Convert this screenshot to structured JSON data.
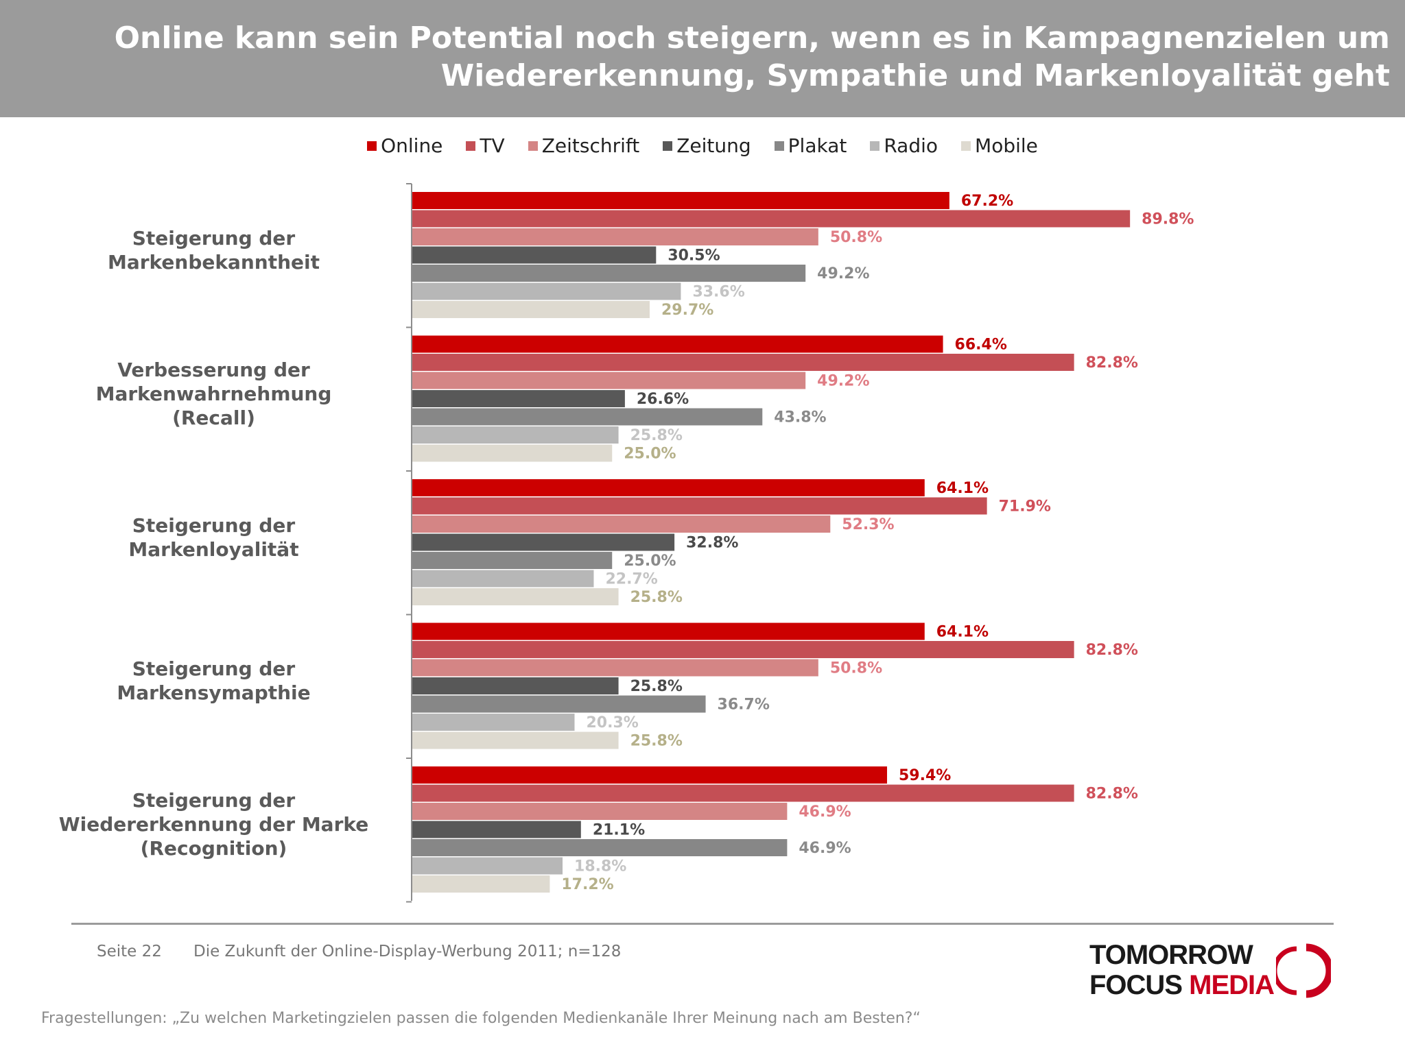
{
  "header": {
    "title_line1": "Online kann sein Potential noch steigern, wenn es in Kampagnenzielen um",
    "title_line2": "Wiedererkennung, Sympathie und Markenloyalität geht",
    "background_color": "#9b9b9b"
  },
  "chart_data": {
    "type": "bar",
    "orientation": "horizontal",
    "categories": [
      [
        "Steigerung der",
        "Markenbekanntheit"
      ],
      [
        "Verbesserung der",
        "Markenwahrnehmung",
        "(Recall)"
      ],
      [
        "Steigerung der",
        "Markenloyalität"
      ],
      [
        "Steigerung der",
        "Markensymapthie"
      ],
      [
        "Steigerung der",
        "Wiedererkennung der Marke",
        "(Recognition)"
      ]
    ],
    "series": [
      {
        "name": "Online",
        "color": "#cc0000",
        "label_color": "#c00000",
        "values": [
          67.2,
          66.4,
          64.1,
          64.1,
          59.4
        ]
      },
      {
        "name": "TV",
        "color": "#c44f55",
        "label_color": "#d0505a",
        "values": [
          89.8,
          82.8,
          71.9,
          82.8,
          82.8
        ]
      },
      {
        "name": "Zeitschrift",
        "color": "#d48585",
        "label_color": "#e07c84",
        "values": [
          50.8,
          49.2,
          52.3,
          50.8,
          46.9
        ]
      },
      {
        "name": "Zeitung",
        "color": "#585858",
        "label_color": "#4a4a4a",
        "values": [
          30.5,
          26.6,
          32.8,
          25.8,
          21.1
        ]
      },
      {
        "name": "Plakat",
        "color": "#878787",
        "label_color": "#8a8a8a",
        "values": [
          49.2,
          43.8,
          25.0,
          36.7,
          46.9
        ]
      },
      {
        "name": "Radio",
        "color": "#b7b7b7",
        "label_color": "#c4c4c4",
        "values": [
          33.6,
          25.8,
          22.7,
          20.3,
          18.8
        ]
      },
      {
        "name": "Mobile",
        "color": "#dedad0",
        "label_color": "#b5b089",
        "values": [
          29.7,
          25.0,
          25.8,
          25.8,
          17.2
        ]
      }
    ],
    "value_suffix": "%",
    "xlim": [
      0,
      100
    ],
    "grid": false,
    "legend_position": "top-center"
  },
  "footer": {
    "page": "Seite 22",
    "source": "Die Zukunft der Online-Display-Werbung 2011; n=128",
    "question": "Fragestellungen: „Zu welchen Marketingzielen passen die folgenden Medienkanäle Ihrer Meinung nach am Besten?“"
  },
  "logo": {
    "line1": "TOMORROW",
    "line2_a": "FOCUS ",
    "line2_b": "MEDIA",
    "accent_color": "#c8001e"
  }
}
